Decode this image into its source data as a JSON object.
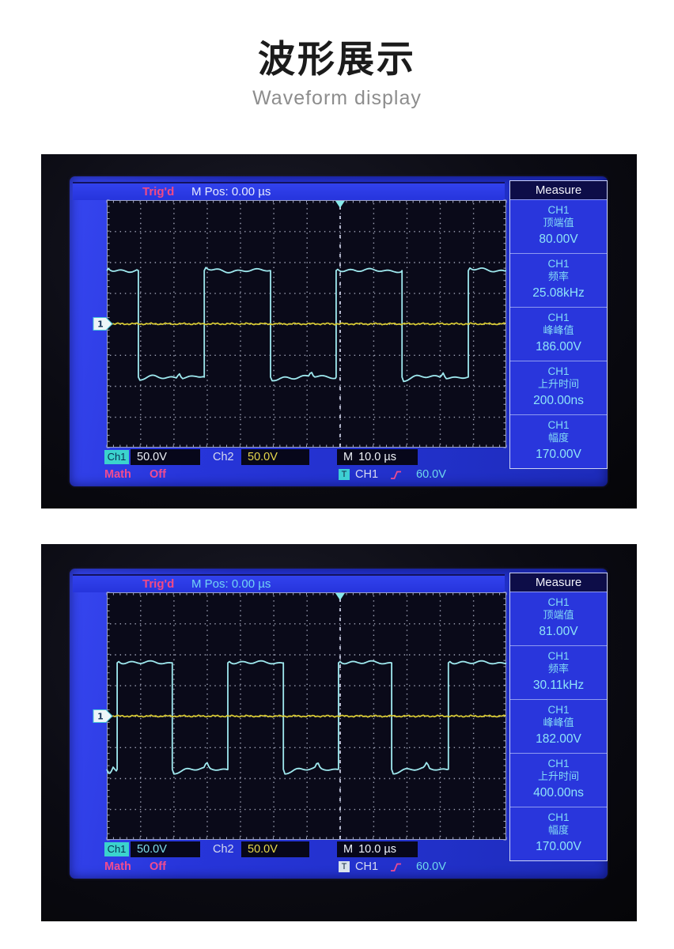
{
  "page": {
    "title": "波形展示",
    "subtitle": "Waveform display"
  },
  "scopes": [
    {
      "top_bar": {
        "trig_status": "Trig'd",
        "m_pos": "M Pos: 0.00 µs"
      },
      "measure": {
        "title": "Measure",
        "items": [
          {
            "channel": "CH1",
            "label": "顶端值",
            "value": "80.00V"
          },
          {
            "channel": "CH1",
            "label": "频率",
            "value": "25.08kHz"
          },
          {
            "channel": "CH1",
            "label": "峰峰值",
            "value": "186.00V"
          },
          {
            "channel": "CH1",
            "label": "上升时间",
            "value": "200.00ns"
          },
          {
            "channel": "CH1",
            "label": "幅度",
            "value": "170.00V"
          }
        ]
      },
      "status_bar": {
        "ch1_label": "Ch1",
        "ch1_value": "50.0V",
        "ch2_label": "Ch2",
        "ch2_value": "50.0V",
        "time_label": "M",
        "time_value": "10.0 µs",
        "math_label": "Math",
        "math_value": "Off",
        "trigger_badge": "T",
        "trigger_source": "CH1",
        "trigger_level": "60.0V"
      },
      "channel_marker": "1",
      "colors": {
        "m_pos_text": "#e6ebff",
        "ch1_value_text": "#eef2f8",
        "trigger_badge_bg": "#3ecfd4"
      },
      "chart_data": {
        "type": "line",
        "x_divisions": 12,
        "y_divisions": 8,
        "volts_per_div": 50,
        "time_per_div": "10.0 µs",
        "trigger_x_frac": 0.584,
        "series": [
          {
            "name": "CH1",
            "color": "#9fe9ef",
            "kind": "square",
            "start_level": "high",
            "high_div": 1.72,
            "low_div": -1.72,
            "transition_fracs": [
              0.079,
              0.244,
              0.41,
              0.574,
              0.739,
              0.905
            ]
          },
          {
            "name": "CH2",
            "color": "#d9cb33",
            "kind": "flat",
            "level_div": 0
          }
        ]
      }
    },
    {
      "top_bar": {
        "trig_status": "Trig'd",
        "m_pos": "M Pos: 0.00 µs"
      },
      "measure": {
        "title": "Measure",
        "items": [
          {
            "channel": "CH1",
            "label": "顶端值",
            "value": "81.00V"
          },
          {
            "channel": "CH1",
            "label": "频率",
            "value": "30.11kHz"
          },
          {
            "channel": "CH1",
            "label": "峰峰值",
            "value": "182.00V"
          },
          {
            "channel": "CH1",
            "label": "上升时间",
            "value": "400.00ns"
          },
          {
            "channel": "CH1",
            "label": "幅度",
            "value": "170.00V"
          }
        ]
      },
      "status_bar": {
        "ch1_label": "Ch1",
        "ch1_value": "50.0V",
        "ch2_label": "Ch2",
        "ch2_value": "50.0V",
        "time_label": "M",
        "time_value": "10.0 µs",
        "math_label": "Math",
        "math_value": "Off",
        "trigger_badge": "T",
        "trigger_source": "CH1",
        "trigger_level": "60.0V"
      },
      "channel_marker": "1",
      "colors": {
        "m_pos_text": "#72d4f4",
        "ch1_value_text": "#7fdce8",
        "trigger_badge_bg": "#d9e3ec"
      },
      "chart_data": {
        "type": "line",
        "x_divisions": 12,
        "y_divisions": 8,
        "volts_per_div": 50,
        "time_per_div": "10.0 µs",
        "trigger_x_frac": 0.584,
        "series": [
          {
            "name": "CH1",
            "color": "#9fe9ef",
            "kind": "square",
            "start_level": "low",
            "high_div": 1.72,
            "low_div": -1.72,
            "transition_fracs": [
              0.026,
              0.164,
              0.303,
              0.442,
              0.58,
              0.713,
              0.855
            ]
          },
          {
            "name": "CH2",
            "color": "#d9cb33",
            "kind": "flat",
            "level_div": 0
          }
        ]
      }
    }
  ]
}
